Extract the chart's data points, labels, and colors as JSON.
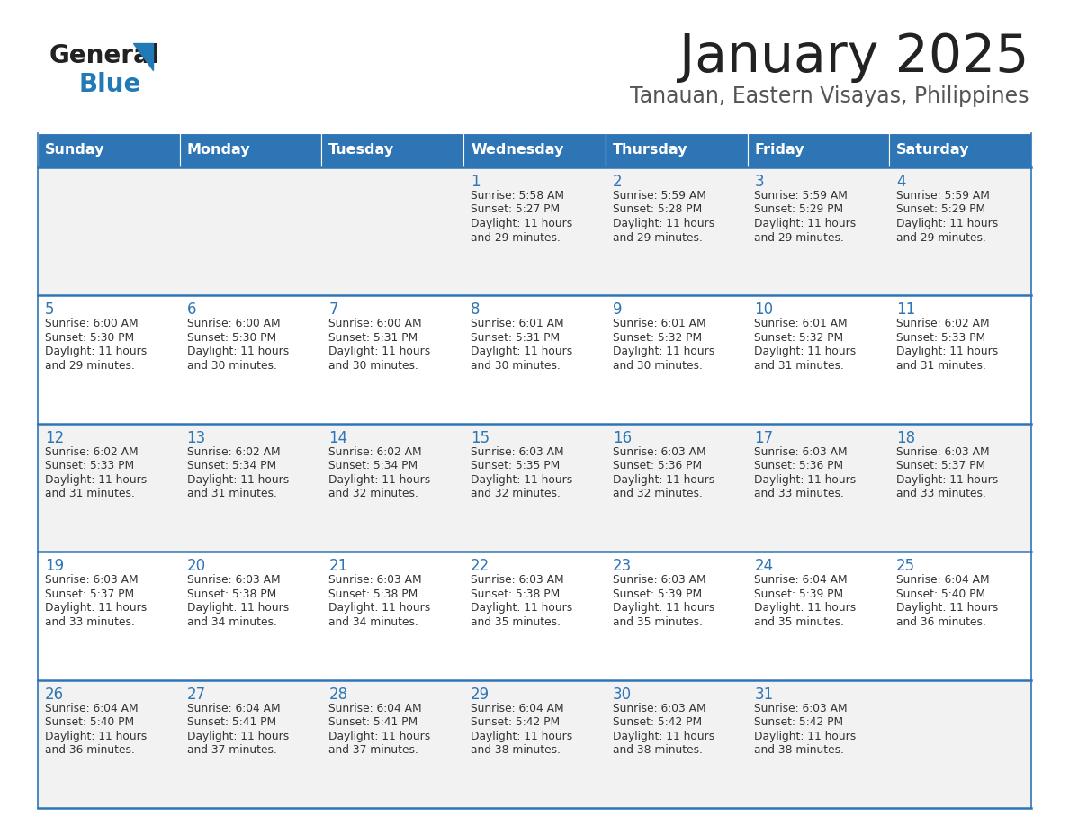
{
  "title": "January 2025",
  "subtitle": "Tanauan, Eastern Visayas, Philippines",
  "header_bg": "#2E75B6",
  "header_text_color": "#FFFFFF",
  "day_names": [
    "Sunday",
    "Monday",
    "Tuesday",
    "Wednesday",
    "Thursday",
    "Friday",
    "Saturday"
  ],
  "row_bg_odd": "#F2F2F2",
  "row_bg_even": "#FFFFFF",
  "cell_text_color": "#333333",
  "day_num_color": "#2E75B6",
  "grid_line_color": "#2E75B6",
  "logo_general_color": "#222222",
  "logo_blue_color": "#2179B5",
  "logo_triangle_color": "#2179B5",
  "title_color": "#222222",
  "subtitle_color": "#555555",
  "calendar": [
    [
      {
        "day": "",
        "sunrise": "",
        "sunset": "",
        "daylight": ""
      },
      {
        "day": "",
        "sunrise": "",
        "sunset": "",
        "daylight": ""
      },
      {
        "day": "",
        "sunrise": "",
        "sunset": "",
        "daylight": ""
      },
      {
        "day": "1",
        "sunrise": "5:58 AM",
        "sunset": "5:27 PM",
        "daylight": "11 hours and 29 minutes."
      },
      {
        "day": "2",
        "sunrise": "5:59 AM",
        "sunset": "5:28 PM",
        "daylight": "11 hours and 29 minutes."
      },
      {
        "day": "3",
        "sunrise": "5:59 AM",
        "sunset": "5:29 PM",
        "daylight": "11 hours and 29 minutes."
      },
      {
        "day": "4",
        "sunrise": "5:59 AM",
        "sunset": "5:29 PM",
        "daylight": "11 hours and 29 minutes."
      }
    ],
    [
      {
        "day": "5",
        "sunrise": "6:00 AM",
        "sunset": "5:30 PM",
        "daylight": "11 hours and 29 minutes."
      },
      {
        "day": "6",
        "sunrise": "6:00 AM",
        "sunset": "5:30 PM",
        "daylight": "11 hours and 30 minutes."
      },
      {
        "day": "7",
        "sunrise": "6:00 AM",
        "sunset": "5:31 PM",
        "daylight": "11 hours and 30 minutes."
      },
      {
        "day": "8",
        "sunrise": "6:01 AM",
        "sunset": "5:31 PM",
        "daylight": "11 hours and 30 minutes."
      },
      {
        "day": "9",
        "sunrise": "6:01 AM",
        "sunset": "5:32 PM",
        "daylight": "11 hours and 30 minutes."
      },
      {
        "day": "10",
        "sunrise": "6:01 AM",
        "sunset": "5:32 PM",
        "daylight": "11 hours and 31 minutes."
      },
      {
        "day": "11",
        "sunrise": "6:02 AM",
        "sunset": "5:33 PM",
        "daylight": "11 hours and 31 minutes."
      }
    ],
    [
      {
        "day": "12",
        "sunrise": "6:02 AM",
        "sunset": "5:33 PM",
        "daylight": "11 hours and 31 minutes."
      },
      {
        "day": "13",
        "sunrise": "6:02 AM",
        "sunset": "5:34 PM",
        "daylight": "11 hours and 31 minutes."
      },
      {
        "day": "14",
        "sunrise": "6:02 AM",
        "sunset": "5:34 PM",
        "daylight": "11 hours and 32 minutes."
      },
      {
        "day": "15",
        "sunrise": "6:03 AM",
        "sunset": "5:35 PM",
        "daylight": "11 hours and 32 minutes."
      },
      {
        "day": "16",
        "sunrise": "6:03 AM",
        "sunset": "5:36 PM",
        "daylight": "11 hours and 32 minutes."
      },
      {
        "day": "17",
        "sunrise": "6:03 AM",
        "sunset": "5:36 PM",
        "daylight": "11 hours and 33 minutes."
      },
      {
        "day": "18",
        "sunrise": "6:03 AM",
        "sunset": "5:37 PM",
        "daylight": "11 hours and 33 minutes."
      }
    ],
    [
      {
        "day": "19",
        "sunrise": "6:03 AM",
        "sunset": "5:37 PM",
        "daylight": "11 hours and 33 minutes."
      },
      {
        "day": "20",
        "sunrise": "6:03 AM",
        "sunset": "5:38 PM",
        "daylight": "11 hours and 34 minutes."
      },
      {
        "day": "21",
        "sunrise": "6:03 AM",
        "sunset": "5:38 PM",
        "daylight": "11 hours and 34 minutes."
      },
      {
        "day": "22",
        "sunrise": "6:03 AM",
        "sunset": "5:38 PM",
        "daylight": "11 hours and 35 minutes."
      },
      {
        "day": "23",
        "sunrise": "6:03 AM",
        "sunset": "5:39 PM",
        "daylight": "11 hours and 35 minutes."
      },
      {
        "day": "24",
        "sunrise": "6:04 AM",
        "sunset": "5:39 PM",
        "daylight": "11 hours and 35 minutes."
      },
      {
        "day": "25",
        "sunrise": "6:04 AM",
        "sunset": "5:40 PM",
        "daylight": "11 hours and 36 minutes."
      }
    ],
    [
      {
        "day": "26",
        "sunrise": "6:04 AM",
        "sunset": "5:40 PM",
        "daylight": "11 hours and 36 minutes."
      },
      {
        "day": "27",
        "sunrise": "6:04 AM",
        "sunset": "5:41 PM",
        "daylight": "11 hours and 37 minutes."
      },
      {
        "day": "28",
        "sunrise": "6:04 AM",
        "sunset": "5:41 PM",
        "daylight": "11 hours and 37 minutes."
      },
      {
        "day": "29",
        "sunrise": "6:04 AM",
        "sunset": "5:42 PM",
        "daylight": "11 hours and 38 minutes."
      },
      {
        "day": "30",
        "sunrise": "6:03 AM",
        "sunset": "5:42 PM",
        "daylight": "11 hours and 38 minutes."
      },
      {
        "day": "31",
        "sunrise": "6:03 AM",
        "sunset": "5:42 PM",
        "daylight": "11 hours and 38 minutes."
      },
      {
        "day": "",
        "sunrise": "",
        "sunset": "",
        "daylight": ""
      }
    ]
  ]
}
